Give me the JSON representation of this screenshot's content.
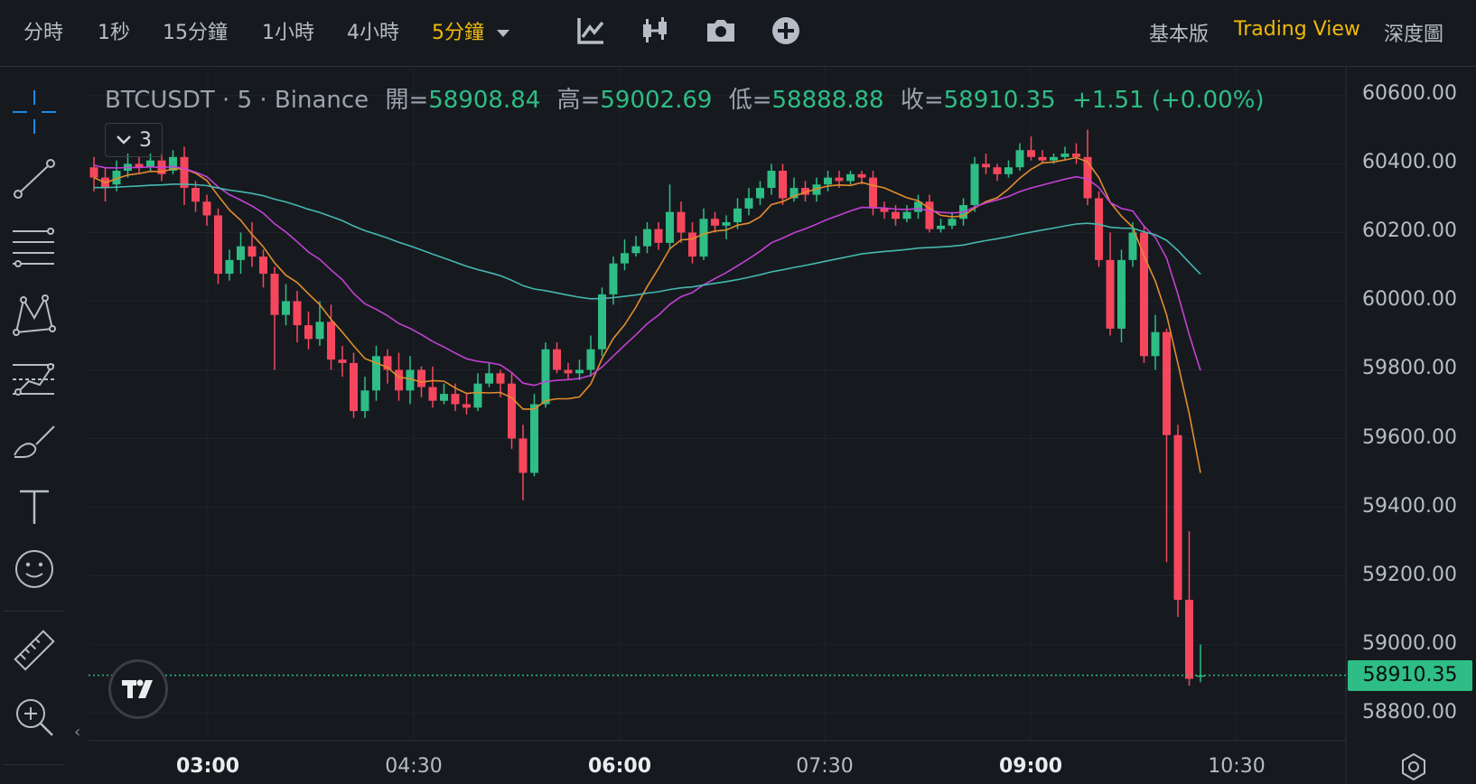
{
  "toolbar": {
    "timeframes": [
      "分時",
      "1秒",
      "15分鐘",
      "1小時",
      "4小時",
      "5分鐘"
    ],
    "active_timeframe": "5分鐘",
    "tools": [
      "indicator-icon",
      "chart-type-icon",
      "camera-icon",
      "add-icon"
    ],
    "views": [
      "基本版",
      "Trading View",
      "深度圖"
    ],
    "active_view": "Trading View"
  },
  "legend": {
    "symbol": "BTCUSDT · 5 · Binance",
    "open_label": "開=",
    "open": "58908.84",
    "high_label": "高=",
    "high": "59002.69",
    "low_label": "低=",
    "low": "58888.88",
    "close_label": "收=",
    "close": "58910.35",
    "change": "+1.51 (+0.00%)"
  },
  "indicators_badge": {
    "count": "3"
  },
  "sidebar_tools": [
    "crosshair-icon",
    "trend-line-icon",
    "fib-lines-icon",
    "pattern-icon",
    "projection-icon",
    "brush-icon",
    "text-icon",
    "emoji-icon",
    "ruler-icon",
    "zoom-in-icon"
  ],
  "colors": {
    "up": "#2EBD85",
    "down": "#F6465D",
    "ma7": "#E28C2E",
    "ma25": "#C440D6",
    "ma99": "#45B8B0",
    "accent": "#F0B90B"
  },
  "chart_data": {
    "type": "candlestick",
    "ylim": [
      58720,
      60680
    ],
    "y_ticks": [
      "60600.00",
      "60400.00",
      "60200.00",
      "60000.00",
      "59800.00",
      "59600.00",
      "59400.00",
      "59200.00",
      "59000.00",
      "58800.00"
    ],
    "x_ticks": [
      {
        "label": "03:00",
        "bold": true
      },
      {
        "label": "04:30",
        "bold": false
      },
      {
        "label": "06:00",
        "bold": true
      },
      {
        "label": "07:30",
        "bold": false
      },
      {
        "label": "09:00",
        "bold": true
      },
      {
        "label": "10:30",
        "bold": false
      }
    ],
    "current_price": "58910.35",
    "candles": [
      [
        60390,
        60360,
        60420,
        60320
      ],
      [
        60360,
        60330,
        60390,
        60290
      ],
      [
        60340,
        60380,
        60410,
        60320
      ],
      [
        60380,
        60400,
        60430,
        60360
      ],
      [
        60400,
        60390,
        60420,
        60370
      ],
      [
        60390,
        60410,
        60430,
        60380
      ],
      [
        60410,
        60370,
        60430,
        60350
      ],
      [
        60380,
        60420,
        60440,
        60370
      ],
      [
        60420,
        60330,
        60450,
        60280
      ],
      [
        60330,
        60290,
        60350,
        60260
      ],
      [
        60290,
        60250,
        60310,
        60220
      ],
      [
        60250,
        60080,
        60270,
        60050
      ],
      [
        60080,
        60120,
        60150,
        60060
      ],
      [
        60120,
        60160,
        60200,
        60080
      ],
      [
        60160,
        60130,
        60230,
        60100
      ],
      [
        60130,
        60080,
        60150,
        60040
      ],
      [
        60080,
        59960,
        60100,
        59800
      ],
      [
        59960,
        60000,
        60050,
        59930
      ],
      [
        60000,
        59930,
        60030,
        59880
      ],
      [
        59930,
        59890,
        59970,
        59860
      ],
      [
        59890,
        59940,
        60000,
        59870
      ],
      [
        59940,
        59830,
        59990,
        59800
      ],
      [
        59830,
        59820,
        59870,
        59780
      ],
      [
        59820,
        59680,
        59850,
        59660
      ],
      [
        59680,
        59740,
        59780,
        59660
      ],
      [
        59740,
        59840,
        59870,
        59710
      ],
      [
        59840,
        59800,
        59860,
        59760
      ],
      [
        59800,
        59740,
        59850,
        59710
      ],
      [
        59740,
        59800,
        59840,
        59700
      ],
      [
        59800,
        59750,
        59810,
        59720
      ],
      [
        59750,
        59710,
        59810,
        59690
      ],
      [
        59710,
        59730,
        59760,
        59700
      ],
      [
        59730,
        59700,
        59760,
        59680
      ],
      [
        59700,
        59690,
        59730,
        59670
      ],
      [
        59690,
        59760,
        59790,
        59680
      ],
      [
        59760,
        59790,
        59820,
        59750
      ],
      [
        59790,
        59760,
        59800,
        59720
      ],
      [
        59760,
        59600,
        59790,
        59570
      ],
      [
        59600,
        59500,
        59640,
        59420
      ],
      [
        59500,
        59700,
        59730,
        59490
      ],
      [
        59700,
        59860,
        59880,
        59690
      ],
      [
        59860,
        59800,
        59880,
        59790
      ],
      [
        59800,
        59790,
        59820,
        59770
      ],
      [
        59790,
        59800,
        59830,
        59770
      ],
      [
        59800,
        59860,
        59900,
        59780
      ],
      [
        59860,
        60020,
        60040,
        59840
      ],
      [
        60020,
        60110,
        60130,
        59990
      ],
      [
        60110,
        60140,
        60180,
        60090
      ],
      [
        60140,
        60160,
        60190,
        60130
      ],
      [
        60160,
        60210,
        60230,
        60140
      ],
      [
        60210,
        60170,
        60230,
        60150
      ],
      [
        60170,
        60260,
        60340,
        60150
      ],
      [
        60260,
        60200,
        60290,
        60170
      ],
      [
        60200,
        60130,
        60230,
        60110
      ],
      [
        60130,
        60240,
        60270,
        60120
      ],
      [
        60240,
        60220,
        60260,
        60200
      ],
      [
        60220,
        60230,
        60250,
        60180
      ],
      [
        60230,
        60270,
        60300,
        60210
      ],
      [
        60270,
        60300,
        60330,
        60250
      ],
      [
        60300,
        60330,
        60350,
        60280
      ],
      [
        60330,
        60380,
        60400,
        60310
      ],
      [
        60380,
        60300,
        60400,
        60280
      ],
      [
        60300,
        60330,
        60360,
        60290
      ],
      [
        60330,
        60310,
        60350,
        60290
      ],
      [
        60310,
        60340,
        60360,
        60290
      ],
      [
        60340,
        60360,
        60380,
        60320
      ],
      [
        60360,
        60350,
        60380,
        60330
      ],
      [
        60350,
        60370,
        60380,
        60340
      ],
      [
        60370,
        60360,
        60380,
        60340
      ],
      [
        60360,
        60270,
        60380,
        60250
      ],
      [
        60270,
        60260,
        60290,
        60240
      ],
      [
        60260,
        60240,
        60280,
        60220
      ],
      [
        60240,
        60260,
        60280,
        60230
      ],
      [
        60260,
        60290,
        60310,
        60240
      ],
      [
        60290,
        60210,
        60310,
        60200
      ],
      [
        60210,
        60220,
        60240,
        60200
      ],
      [
        60220,
        60240,
        60260,
        60210
      ],
      [
        60240,
        60280,
        60300,
        60220
      ],
      [
        60280,
        60400,
        60420,
        60260
      ],
      [
        60400,
        60390,
        60430,
        60370
      ],
      [
        60390,
        60370,
        60400,
        60350
      ],
      [
        60370,
        60390,
        60410,
        60360
      ],
      [
        60390,
        60440,
        60460,
        60380
      ],
      [
        60440,
        60420,
        60480,
        60410
      ],
      [
        60420,
        60410,
        60440,
        60400
      ],
      [
        60410,
        60420,
        60430,
        60400
      ],
      [
        60420,
        60430,
        60450,
        60410
      ],
      [
        60430,
        60420,
        60460,
        60400
      ],
      [
        60420,
        60300,
        60500,
        60280
      ],
      [
        60300,
        60120,
        60320,
        60100
      ],
      [
        60120,
        59920,
        60200,
        59900
      ],
      [
        59920,
        60120,
        60150,
        59880
      ],
      [
        60120,
        60200,
        60230,
        60100
      ],
      [
        60200,
        59840,
        60220,
        59820
      ],
      [
        59840,
        59910,
        59960,
        59800
      ],
      [
        59910,
        59610,
        59920,
        59240
      ],
      [
        59610,
        59130,
        59640,
        59080
      ],
      [
        59130,
        58900,
        59330,
        58880
      ],
      [
        58910,
        58910,
        59000,
        58890
      ]
    ]
  }
}
